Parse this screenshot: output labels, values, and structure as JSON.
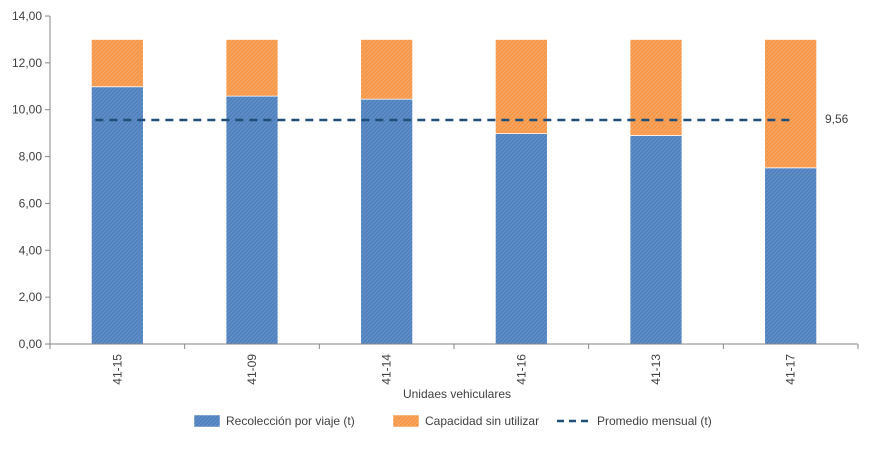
{
  "chart_data": {
    "type": "bar",
    "stacked": true,
    "categories": [
      "41-15",
      "41-09",
      "41-14",
      "41-16",
      "41-13",
      "41-17"
    ],
    "series": [
      {
        "name": "Recolección por viaje (t)",
        "kind": "bar",
        "color": "#4F81BD",
        "values": [
          10.98,
          10.58,
          10.45,
          8.98,
          8.9,
          7.52
        ]
      },
      {
        "name": "Capacidad sin utilizar",
        "kind": "bar",
        "color": "#F79646",
        "values": [
          2.02,
          2.42,
          2.55,
          4.02,
          4.1,
          5.48
        ]
      },
      {
        "name": "Promedio mensual (t)",
        "kind": "line",
        "style": "dashed",
        "color": "#1F4E79",
        "value": 9.56
      }
    ],
    "average_label": "9,56",
    "xlabel": "Unidaes vehiculares",
    "ylabel": "",
    "ylim": [
      0,
      14
    ],
    "yticks": [
      "0,00",
      "2,00",
      "4,00",
      "6,00",
      "8,00",
      "10,00",
      "12,00",
      "14,00"
    ],
    "grid": false,
    "legend_position": "bottom"
  }
}
